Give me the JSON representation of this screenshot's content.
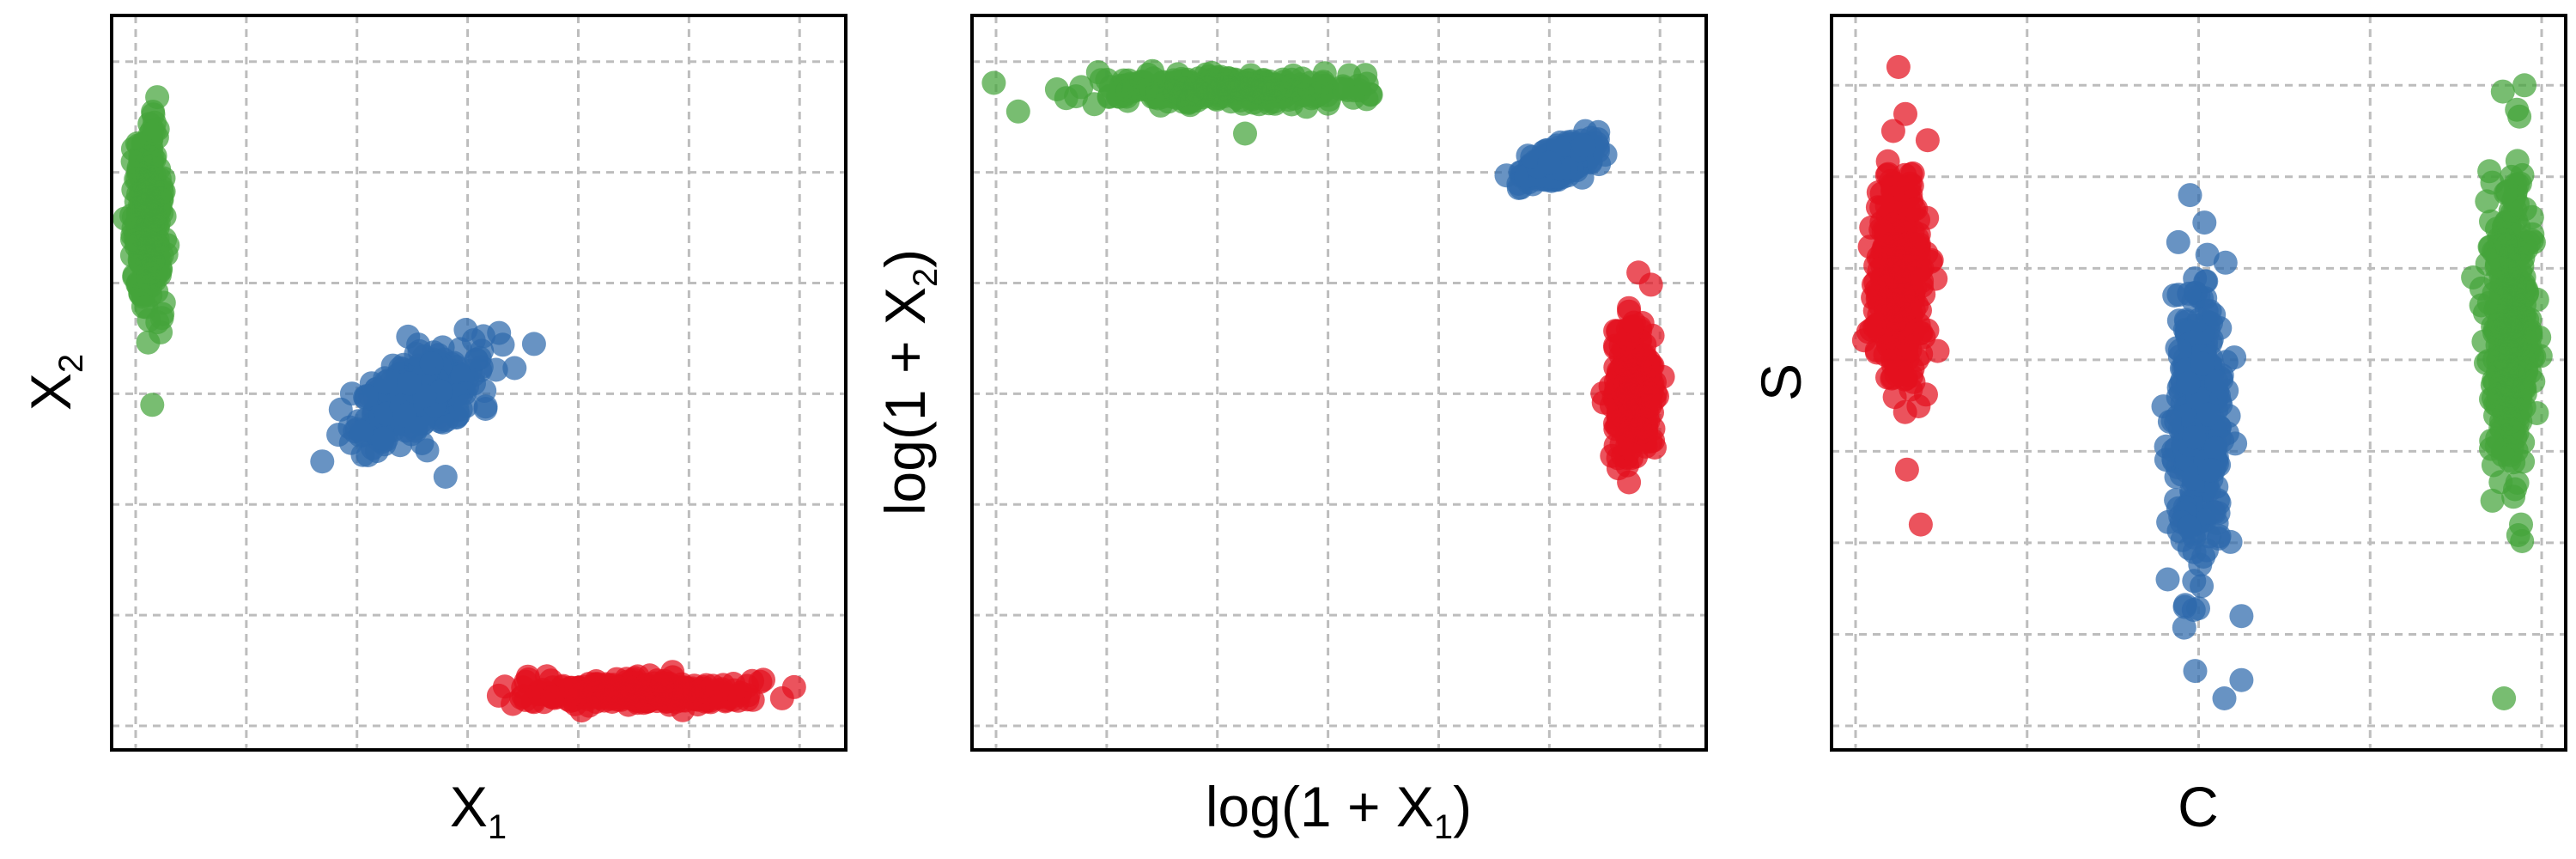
{
  "colors": {
    "green": "#44a33a",
    "blue": "#2e69ac",
    "red": "#e3101e",
    "grid": "#bdbdbd",
    "frame": "#000000"
  },
  "panels": [
    {
      "xlabel": {
        "main": "X",
        "sub": "1",
        "pre": "",
        "post": ""
      },
      "ylabel": {
        "main": "X",
        "sub": "2",
        "pre": "",
        "post": ""
      }
    },
    {
      "xlabel": {
        "pre": "log(1 + ",
        "main": "X",
        "sub": "1",
        "post": ")"
      },
      "ylabel": {
        "pre": "log(1 + ",
        "main": "X",
        "sub": "2",
        "post": ")"
      }
    },
    {
      "xlabel": {
        "main": "C",
        "sub": "",
        "pre": "",
        "post": ""
      },
      "ylabel": {
        "main": "S",
        "sub": "",
        "pre": "",
        "post": ""
      }
    }
  ],
  "chart_data": [
    {
      "type": "scatter",
      "xlabel": "X1",
      "ylabel": "X2",
      "xlim": [
        0,
        6.2
      ],
      "ylim": [
        0,
        6.2
      ],
      "xticks": [
        0,
        1,
        2,
        3,
        4,
        5,
        6
      ],
      "yticks": [
        0,
        1,
        2,
        3,
        4,
        5,
        6
      ],
      "tick_labels_shown": false,
      "grid": true,
      "series": [
        {
          "color": "green",
          "n": 320,
          "center": [
            0.12,
            4.6
          ],
          "sd": [
            0.07,
            0.38
          ],
          "rho": 0.0,
          "outliers": [
            [
              0.15,
              2.9
            ]
          ]
        },
        {
          "color": "blue",
          "n": 360,
          "center": [
            2.55,
            3.0
          ],
          "sd": [
            0.28,
            0.2
          ],
          "rho": 0.55,
          "outliers": [
            [
              2.8,
              2.25
            ],
            [
              3.6,
              3.45
            ]
          ]
        },
        {
          "color": "red",
          "n": 360,
          "center": [
            4.55,
            0.3
          ],
          "sd": [
            0.45,
            0.06
          ],
          "rho": 0.0,
          "outliers": [
            [
              5.95,
              0.35
            ]
          ]
        }
      ]
    },
    {
      "type": "scatter",
      "xlabel": "log(1 + X1)",
      "ylabel": "log(1 + X2)",
      "xlim": [
        0,
        6.2
      ],
      "ylim": [
        0,
        6.2
      ],
      "xticks": [
        0,
        1,
        2,
        3,
        4,
        5,
        6
      ],
      "yticks": [
        0,
        1,
        2,
        3,
        4,
        5,
        6
      ],
      "tick_labels_shown": false,
      "grid": true,
      "series": [
        {
          "color": "green",
          "n": 360,
          "center": [
            2.1,
            5.75
          ],
          "sd": [
            0.55,
            0.06
          ],
          "rho": 0.0,
          "outliers": [
            [
              0.2,
              5.55
            ],
            [
              3.35,
              5.8
            ],
            [
              2.25,
              5.35
            ]
          ]
        },
        {
          "color": "blue",
          "n": 300,
          "center": [
            5.1,
            5.1
          ],
          "sd": [
            0.16,
            0.1
          ],
          "rho": 0.6,
          "outliers": []
        },
        {
          "color": "red",
          "n": 300,
          "center": [
            5.75,
            3.0
          ],
          "sd": [
            0.09,
            0.28
          ],
          "rho": 0.0,
          "outliers": [
            [
              5.72,
              2.2
            ]
          ]
        }
      ]
    },
    {
      "type": "scatter",
      "xlabel": "C",
      "ylabel": "S",
      "categories": [
        "",
        "",
        ""
      ],
      "xlim": [
        0,
        4
      ],
      "ylim": [
        0,
        7.5
      ],
      "xticks": [
        0,
        1,
        2,
        3,
        4
      ],
      "yticks": [
        0,
        1,
        2,
        3,
        4,
        5,
        6,
        7
      ],
      "tick_labels_shown": false,
      "grid": true,
      "series": [
        {
          "color": "red",
          "n": 360,
          "center": [
            0.25,
            4.8
          ],
          "sd": [
            0.07,
            0.55
          ],
          "rho": 0.0,
          "outliers": [
            [
              0.25,
              7.2
            ],
            [
              0.22,
              6.5
            ],
            [
              0.42,
              6.4
            ],
            [
              0.3,
              2.8
            ],
            [
              0.38,
              2.2
            ]
          ]
        },
        {
          "color": "blue",
          "n": 380,
          "center": [
            2.0,
            3.3
          ],
          "sd": [
            0.08,
            0.75
          ],
          "rho": 0.0,
          "outliers": [
            [
              1.92,
              1.3
            ],
            [
              2.25,
              1.2
            ],
            [
              1.98,
              0.6
            ],
            [
              2.25,
              0.5
            ],
            [
              2.15,
              0.3
            ],
            [
              1.82,
              1.6
            ],
            [
              1.95,
              5.8
            ]
          ]
        },
        {
          "color": "green",
          "n": 400,
          "center": [
            3.82,
            4.4
          ],
          "sd": [
            0.06,
            0.85
          ],
          "rho": 0.0,
          "outliers": [
            [
              3.78,
              0.3
            ],
            [
              3.88,
              2.2
            ],
            [
              3.6,
              4.9
            ],
            [
              3.9,
              7.0
            ]
          ]
        }
      ]
    }
  ]
}
